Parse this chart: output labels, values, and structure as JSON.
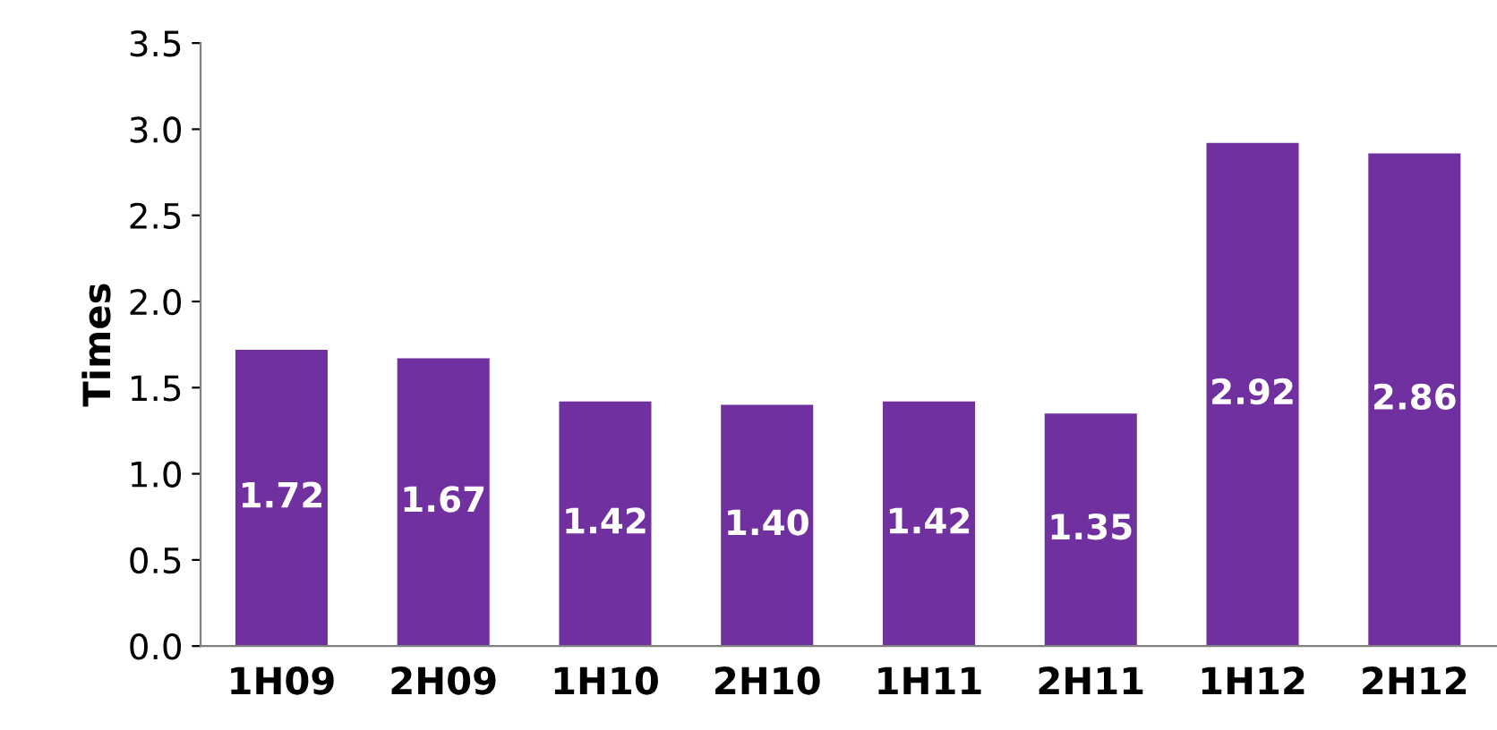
{
  "chart_data": {
    "type": "bar",
    "ylabel": "Times",
    "categories": [
      "1H09",
      "2H09",
      "1H10",
      "2H10",
      "1H11",
      "2H11",
      "1H12",
      "2H12"
    ],
    "values": [
      1.72,
      1.67,
      1.42,
      1.4,
      1.42,
      1.35,
      2.92,
      2.86
    ],
    "value_labels": [
      "1.72",
      "1.67",
      "1.42",
      "1.40",
      "1.42",
      "1.35",
      "2.92",
      "2.86"
    ],
    "color": "#7030a0",
    "ylim": [
      0,
      3.5
    ],
    "yticks": [
      {
        "value": 0,
        "label": "0.0"
      },
      {
        "value": 0.5,
        "label": "0.5"
      },
      {
        "value": 1,
        "label": "1.0"
      },
      {
        "value": 1.5,
        "label": "1.5"
      },
      {
        "value": 2,
        "label": "2.0"
      },
      {
        "value": 2.5,
        "label": "2.5"
      },
      {
        "value": 3,
        "label": "3.0"
      },
      {
        "value": 3.5,
        "label": "3.5"
      }
    ],
    "grid": false,
    "legend": false
  }
}
